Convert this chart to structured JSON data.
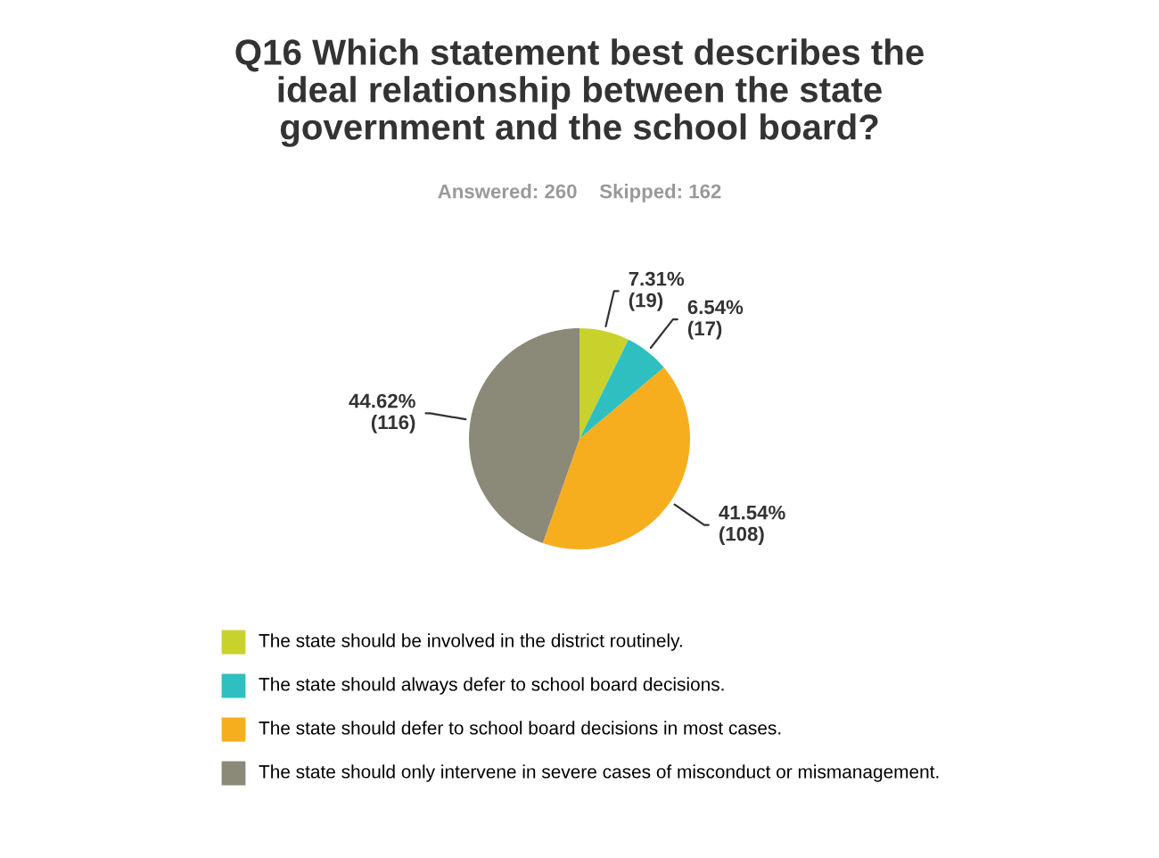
{
  "chart_data": {
    "type": "pie",
    "title": "Q16 Which statement best describes the\nideal relationship between the state\ngovernment and the school board?",
    "subtitle": "Answered: 260    Skipped: 162",
    "categories": [
      "The state should be involved in the district routinely.",
      "The state should always defer to school board decisions.",
      "The state should defer to school board decisions in most cases.",
      "The state should only intervene in severe cases of misconduct or mismanagement."
    ],
    "values": [
      19,
      17,
      108,
      116
    ],
    "value_labels": [
      "7.31%\n(19)",
      "6.54%\n(17)",
      "41.54%\n(108)",
      "44.62%\n(116)"
    ],
    "colors": [
      "#c9d22d",
      "#2fbfc0",
      "#f7ae1e",
      "#8b8a78"
    ],
    "legend": "bottom"
  }
}
